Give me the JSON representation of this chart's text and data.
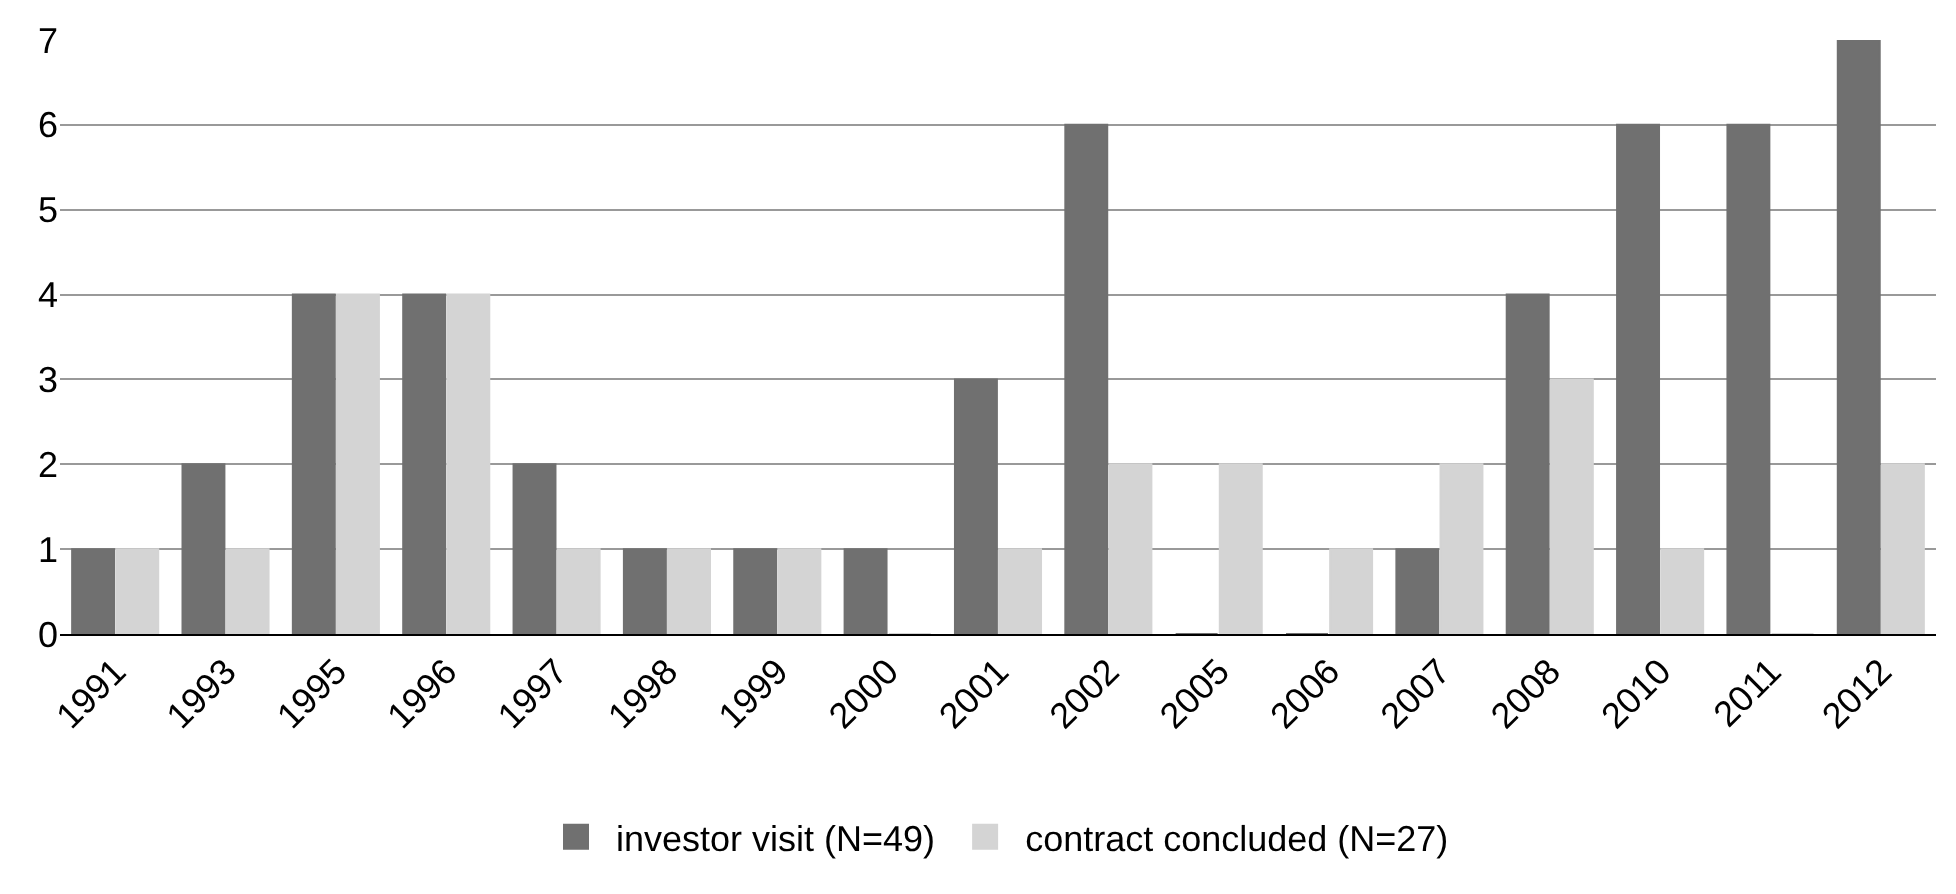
{
  "chart_data": {
    "type": "bar",
    "categories": [
      "1991",
      "1993",
      "1995",
      "1996",
      "1997",
      "1998",
      "1999",
      "2000",
      "2001",
      "2002",
      "2005",
      "2006",
      "2007",
      "2008",
      "2010",
      "2011",
      "2012"
    ],
    "series": [
      {
        "name": "investor visit (N=49)",
        "color": "#707070",
        "values": [
          1,
          2,
          4,
          4,
          2,
          1,
          1,
          1,
          3,
          6,
          0,
          0,
          1,
          4,
          6,
          6,
          7
        ]
      },
      {
        "name": "contract concluded (N=27)",
        "color": "#d4d4d4",
        "values": [
          1,
          1,
          4,
          4,
          1,
          1,
          1,
          0,
          1,
          2,
          2,
          1,
          2,
          3,
          1,
          0,
          2
        ]
      }
    ],
    "ylim": [
      0,
      7
    ],
    "yticks": [
      0,
      1,
      2,
      3,
      4,
      5,
      6,
      7
    ],
    "grid": "y",
    "legend": "bottom"
  }
}
